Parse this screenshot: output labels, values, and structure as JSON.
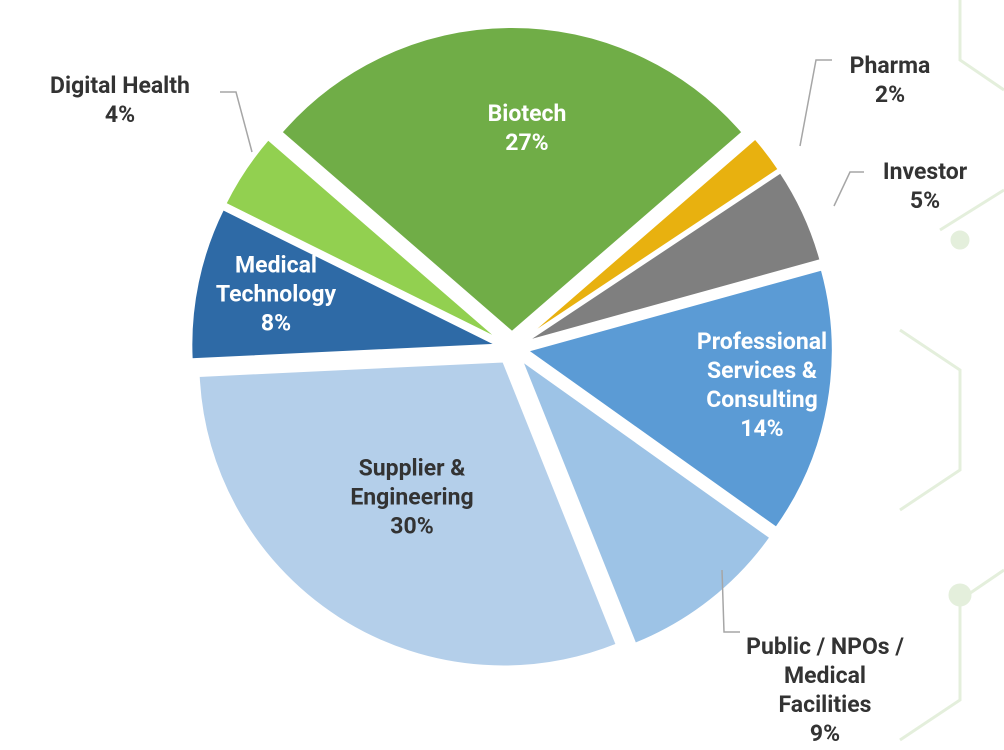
{
  "chart_data": {
    "type": "pie",
    "categories": [
      "Biotech",
      "Pharma",
      "Investor",
      "Professional\nServices &\nConsulting",
      "Public  / NPOs /\nMedical\nFacilities",
      "Supplier &\nEngineering",
      "Medical\nTechnology",
      "Digital Health"
    ],
    "values": [
      27,
      2,
      5,
      14,
      9,
      30,
      8,
      4
    ],
    "value_labels": [
      "27%",
      "2%",
      "5%",
      "14%",
      "9%",
      "30%",
      "8%",
      "4%"
    ],
    "colors": [
      "#70ad47",
      "#e8b10f",
      "#7f7f7f",
      "#5b9bd5",
      "#9dc3e6",
      "#b4cfea",
      "#2e6aa6",
      "#92d050"
    ]
  }
}
